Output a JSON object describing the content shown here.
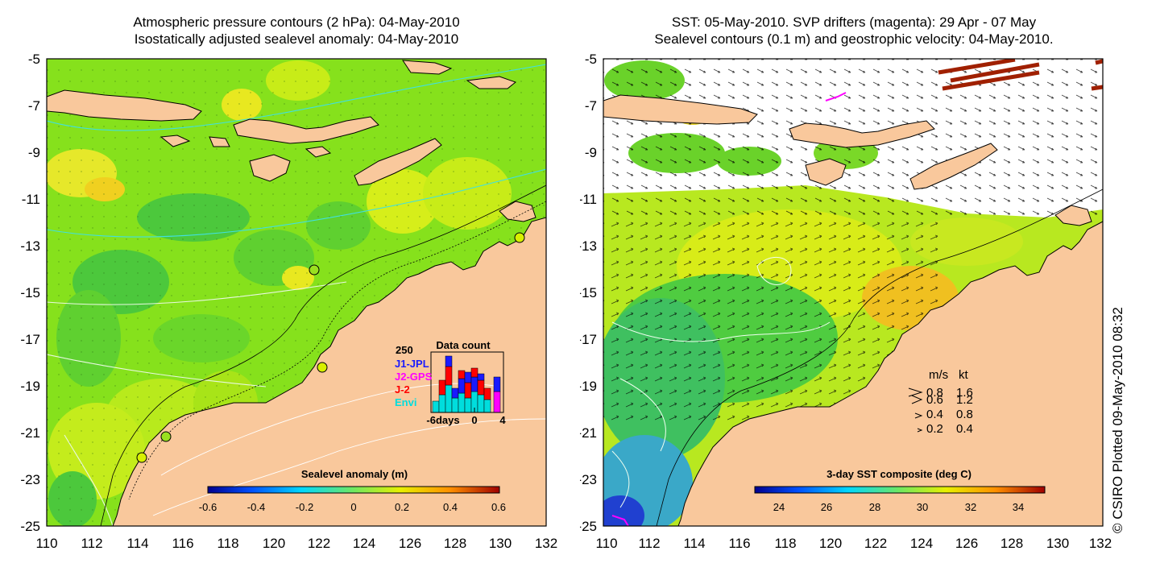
{
  "left_panel": {
    "title_line1": "Atmospheric pressure contours (2 hPa): 04-May-2010",
    "title_line2": "Isostatically adjusted sealevel anomaly: 04-May-2010",
    "colorbar": {
      "label": "Sealevel anomaly (m)",
      "ticks": [
        "-0.6",
        "-0.4",
        "-0.2",
        "0",
        "0.2",
        "0.4",
        "0.6"
      ]
    },
    "inset": {
      "title": "Data count",
      "max_label": "250",
      "x_ticks": [
        "-6days",
        "0",
        "4"
      ],
      "legend": [
        {
          "label": "J1-JPL",
          "color": "#1a1aff"
        },
        {
          "label": "J2-GPS",
          "color": "#ff00ff"
        },
        {
          "label": "J-2",
          "color": "#ff0000"
        },
        {
          "label": "Envi",
          "color": "#00dddd"
        }
      ]
    }
  },
  "right_panel": {
    "title_line1": "SST: 05-May-2010. SVP drifters (magenta): 29 Apr - 07 May",
    "title_line2": "Sealevel contours (0.1 m) and geostrophic velocity: 04-May-2010.",
    "colorbar": {
      "label": "3-day SST composite (deg C)",
      "ticks": [
        "24",
        "26",
        "28",
        "30",
        "32",
        "34"
      ]
    },
    "velocity_legend": {
      "header_ms": "m/s",
      "header_kt": "kt",
      "rows": [
        {
          "ms": "0.8",
          "kt": "1.6"
        },
        {
          "ms": "0.6",
          "kt": "1.2"
        },
        {
          "ms": "0.4",
          "kt": "0.8"
        },
        {
          "ms": "0.2",
          "kt": "0.4"
        }
      ]
    }
  },
  "axes": {
    "lon_labels": [
      "110",
      "112",
      "114",
      "116",
      "118",
      "120",
      "122",
      "124",
      "126",
      "128",
      "130",
      "132"
    ],
    "lat_labels": [
      "-5",
      "-7",
      "-9",
      "-11",
      "-13",
      "-15",
      "-17",
      "-19",
      "-21",
      "-23",
      "-25"
    ]
  },
  "credit": "© CSIRO Plotted 09-May-2010 08:32",
  "colors": {
    "land": "#f9c89c",
    "ocean_green": "#7fe600",
    "ocean_dark": "#3fc83a",
    "ocean_yellow": "#d8f000"
  }
}
